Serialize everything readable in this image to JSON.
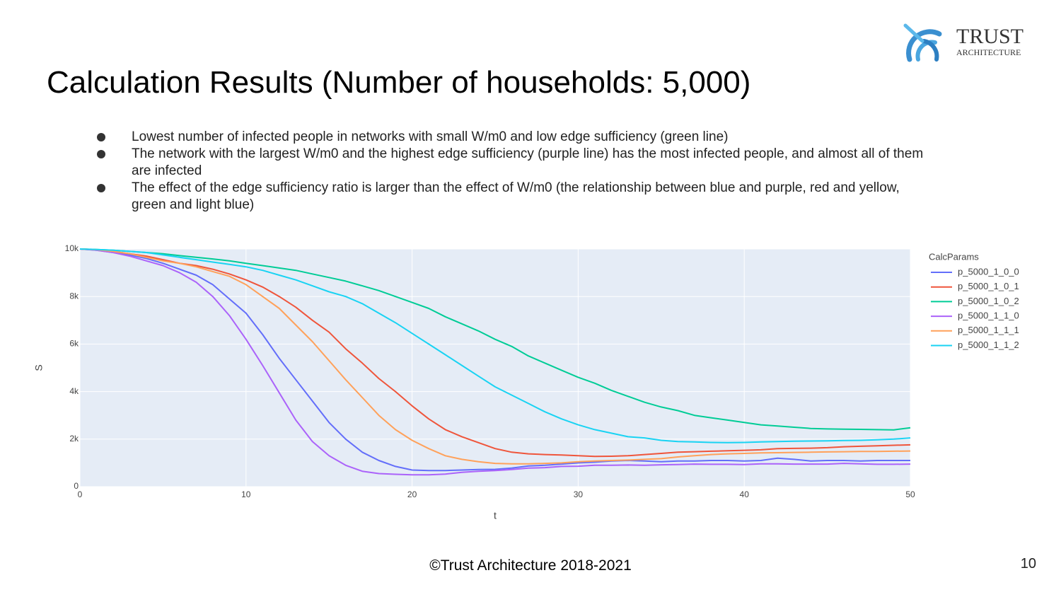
{
  "slide": {
    "title": "Calculation Results (Number of households: 5,000)",
    "bullets": [
      "Lowest number of infected people in networks with small W/m0 and low edge sufficiency (green line)",
      "The network with the largest W/m0 and the highest edge sufficiency (purple line) has the most infected people, and almost all of them are infected",
      "The effect of the edge sufficiency ratio is larger than the effect of W/m0 (the relationship between blue and purple, red and yellow, green and light blue)"
    ],
    "logo_name": "TRUST",
    "logo_sub": "ARCHITECTURE",
    "footer": "©Trust Architecture 2018-2021",
    "page_number": "10"
  },
  "chart_data": {
    "type": "line",
    "x_label": "t",
    "y_label": "S",
    "legend_title": "CalcParams",
    "grid": true,
    "xlim": [
      0,
      50
    ],
    "xticks": [
      0,
      10,
      20,
      30,
      40,
      50
    ],
    "ylim": [
      0,
      10000
    ],
    "yticks": [
      0,
      {
        "value": 2000,
        "label": "2k"
      },
      {
        "value": 4000,
        "label": "4k"
      },
      {
        "value": 6000,
        "label": "6k"
      },
      {
        "value": 8000,
        "label": "8k"
      },
      {
        "value": 10000,
        "label": "10k"
      }
    ],
    "x": [
      0,
      1,
      2,
      3,
      4,
      5,
      6,
      7,
      8,
      9,
      10,
      11,
      12,
      13,
      14,
      15,
      16,
      17,
      18,
      19,
      20,
      21,
      22,
      23,
      24,
      25,
      26,
      27,
      28,
      29,
      30,
      31,
      32,
      33,
      34,
      35,
      36,
      37,
      38,
      39,
      40,
      41,
      42,
      43,
      44,
      45,
      46,
      47,
      48,
      49,
      50
    ],
    "series": [
      {
        "name": "p_5000_1_0_0",
        "color": "#636efa",
        "values": [
          10000,
          9950,
          9850,
          9750,
          9600,
          9400,
          9150,
          8900,
          8500,
          7900,
          7300,
          6400,
          5400,
          4500,
          3600,
          2700,
          2000,
          1450,
          1100,
          850,
          700,
          680,
          680,
          700,
          720,
          730,
          780,
          870,
          900,
          950,
          1000,
          1030,
          1080,
          1100,
          1080,
          1050,
          1080,
          1080,
          1100,
          1100,
          1080,
          1100,
          1200,
          1150,
          1080,
          1100,
          1100,
          1080,
          1100,
          1100,
          1100
        ]
      },
      {
        "name": "p_5000_1_0_1",
        "color": "#ef553b",
        "values": [
          10000,
          9970,
          9900,
          9800,
          9700,
          9550,
          9400,
          9300,
          9150,
          8950,
          8700,
          8400,
          8000,
          7550,
          7000,
          6500,
          5800,
          5200,
          4550,
          4000,
          3400,
          2850,
          2400,
          2100,
          1850,
          1600,
          1450,
          1380,
          1350,
          1330,
          1300,
          1270,
          1280,
          1300,
          1350,
          1400,
          1450,
          1470,
          1490,
          1510,
          1530,
          1550,
          1600,
          1610,
          1620,
          1640,
          1680,
          1700,
          1720,
          1740,
          1760
        ]
      },
      {
        "name": "p_5000_1_0_2",
        "color": "#00cc96",
        "values": [
          10000,
          9980,
          9950,
          9900,
          9850,
          9800,
          9720,
          9650,
          9580,
          9500,
          9400,
          9300,
          9200,
          9100,
          8950,
          8800,
          8650,
          8450,
          8250,
          8000,
          7750,
          7500,
          7150,
          6850,
          6550,
          6200,
          5900,
          5500,
          5200,
          4900,
          4600,
          4350,
          4050,
          3800,
          3550,
          3350,
          3200,
          3000,
          2900,
          2800,
          2700,
          2600,
          2550,
          2500,
          2450,
          2430,
          2420,
          2410,
          2400,
          2390,
          2480
        ]
      },
      {
        "name": "p_5000_1_1_0",
        "color": "#ab63fa",
        "values": [
          10000,
          9950,
          9850,
          9700,
          9500,
          9300,
          9000,
          8600,
          8000,
          7200,
          6200,
          5100,
          3950,
          2800,
          1900,
          1300,
          900,
          650,
          550,
          520,
          500,
          500,
          530,
          600,
          650,
          680,
          720,
          780,
          800,
          850,
          860,
          900,
          900,
          910,
          900,
          920,
          930,
          950,
          940,
          940,
          930,
          960,
          960,
          950,
          950,
          950,
          980,
          960,
          940,
          940,
          950
        ]
      },
      {
        "name": "p_5000_1_1_1",
        "color": "#ffa15a",
        "values": [
          10000,
          9970,
          9900,
          9800,
          9650,
          9500,
          9400,
          9250,
          9050,
          8850,
          8500,
          8000,
          7500,
          6800,
          6100,
          5300,
          4500,
          3750,
          3000,
          2400,
          1950,
          1600,
          1300,
          1150,
          1050,
          980,
          960,
          960,
          980,
          1000,
          1050,
          1080,
          1100,
          1120,
          1150,
          1180,
          1250,
          1300,
          1350,
          1380,
          1400,
          1420,
          1430,
          1440,
          1450,
          1460,
          1470,
          1480,
          1480,
          1490,
          1500
        ]
      },
      {
        "name": "p_5000_1_1_2",
        "color": "#19d3f3",
        "values": [
          10000,
          9980,
          9950,
          9900,
          9850,
          9750,
          9650,
          9550,
          9450,
          9350,
          9250,
          9100,
          8900,
          8700,
          8450,
          8200,
          8000,
          7700,
          7300,
          6900,
          6450,
          6000,
          5550,
          5100,
          4650,
          4200,
          3850,
          3500,
          3150,
          2850,
          2600,
          2400,
          2250,
          2100,
          2050,
          1950,
          1900,
          1880,
          1860,
          1850,
          1860,
          1880,
          1900,
          1910,
          1920,
          1930,
          1940,
          1950,
          1970,
          2000,
          2050
        ]
      }
    ]
  }
}
